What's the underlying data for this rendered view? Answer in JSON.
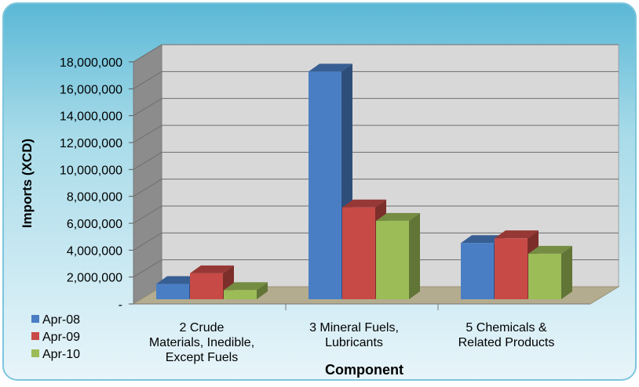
{
  "chart_data": {
    "type": "bar",
    "title": "",
    "xlabel": "Component",
    "ylabel": "Imports (XCD)",
    "categories": [
      [
        "2     Crude",
        "Materials, Inedible,",
        "Except Fuels"
      ],
      [
        "3     Mineral Fuels,",
        "Lubricants"
      ],
      [
        "5     Chemicals &",
        "Related Products"
      ]
    ],
    "series": [
      {
        "name": "Apr-08",
        "values": [
          900000,
          16700000,
          3950000
        ]
      },
      {
        "name": "Apr-09",
        "values": [
          1700000,
          6600000,
          4300000
        ]
      },
      {
        "name": "Apr-10",
        "values": [
          450000,
          5600000,
          3150000
        ]
      }
    ],
    "ylim": [
      0,
      18000000
    ],
    "yticks": [
      "-",
      "2,000,000",
      "4,000,000",
      "6,000,000",
      "8,000,000",
      "10,000,000",
      "12,000,000",
      "14,000,000",
      "16,000,000",
      "18,000,000"
    ],
    "grid": true,
    "legend_position": "bottom-left",
    "colors": {
      "Apr-08": "#4a7ec4",
      "Apr-09": "#c84a46",
      "Apr-10": "#9cbc58",
      "background_top": "#5ab8d6",
      "background_bottom": "#e8f5fa",
      "back_wall": "#d8d8d8",
      "floor": "#b4ac8e",
      "side_wall": "#8c8c8c"
    }
  }
}
